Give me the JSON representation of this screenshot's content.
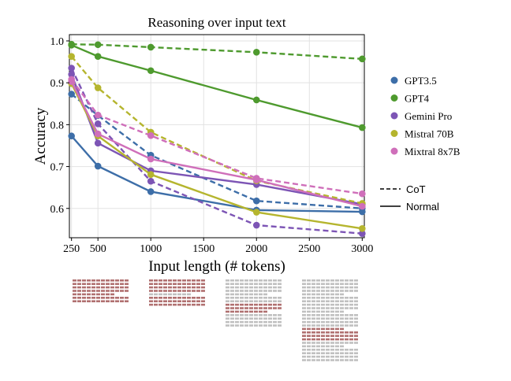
{
  "chart_data": {
    "type": "line",
    "title": "Reasoning over input text",
    "xlabel": "Input length (# tokens)",
    "ylabel": "Accuracy",
    "xlim": [
      230,
      3020
    ],
    "ylim": [
      0.53,
      1.015
    ],
    "xticks": [
      250,
      500,
      1000,
      1500,
      2000,
      2500,
      3000
    ],
    "yticks": [
      0.6,
      0.7,
      0.8,
      0.9,
      1.0
    ],
    "xtick_labels": [
      "250",
      "500",
      "1000",
      "1500",
      "2000",
      "2500",
      "3000"
    ],
    "ytick_labels": [
      "0.6",
      "0.7",
      "0.8",
      "0.9",
      "1.0"
    ],
    "grid": true,
    "legend_position": "right",
    "x": [
      250,
      500,
      1000,
      2000,
      3000
    ],
    "series": [
      {
        "name": "GPT3.5",
        "color": "#3d6ea8",
        "style": "Normal",
        "values": [
          0.773,
          0.701,
          0.64,
          0.596,
          0.592
        ]
      },
      {
        "name": "GPT3.5",
        "color": "#3d6ea8",
        "style": "CoT",
        "values": [
          0.873,
          0.822,
          0.727,
          0.618,
          0.6
        ]
      },
      {
        "name": "GPT4",
        "color": "#4e9a2e",
        "style": "Normal",
        "values": [
          0.99,
          0.963,
          0.929,
          0.859,
          0.793
        ]
      },
      {
        "name": "GPT4",
        "color": "#4e9a2e",
        "style": "CoT",
        "values": [
          0.992,
          0.991,
          0.985,
          0.973,
          0.957
        ]
      },
      {
        "name": "Gemini Pro",
        "color": "#7d55b5",
        "style": "Normal",
        "values": [
          0.92,
          0.756,
          0.69,
          0.657,
          0.61
        ]
      },
      {
        "name": "Gemini Pro",
        "color": "#7d55b5",
        "style": "CoT",
        "values": [
          0.935,
          0.802,
          0.665,
          0.56,
          0.54
        ]
      },
      {
        "name": "Mistral 70B",
        "color": "#b5b52e",
        "style": "Normal",
        "values": [
          0.898,
          0.773,
          0.681,
          0.591,
          0.552
        ]
      },
      {
        "name": "Mistral 70B",
        "color": "#b5b52e",
        "style": "CoT",
        "values": [
          0.963,
          0.888,
          0.782,
          0.666,
          0.612
        ]
      },
      {
        "name": "Mixtral 8x7B",
        "color": "#cf6fba",
        "style": "Normal",
        "values": [
          0.903,
          0.778,
          0.718,
          0.668,
          0.605
        ]
      },
      {
        "name": "Mixtral 8x7B",
        "color": "#cf6fba",
        "style": "CoT",
        "values": [
          0.908,
          0.823,
          0.774,
          0.672,
          0.635
        ]
      }
    ],
    "legend": {
      "models": [
        {
          "name": "GPT3.5",
          "color": "#3d6ea8"
        },
        {
          "name": "GPT4",
          "color": "#4e9a2e"
        },
        {
          "name": "Gemini Pro",
          "color": "#7d55b5"
        },
        {
          "name": "Mistral 70B",
          "color": "#b5b52e"
        },
        {
          "name": "Mixtral 8x7B",
          "color": "#cf6fba"
        }
      ],
      "styles": [
        {
          "name": "CoT",
          "dash": true
        },
        {
          "name": "Normal",
          "dash": false
        }
      ]
    }
  },
  "illustration": {
    "highlight_color": "#b07070",
    "filler_color": "#c0c0c0"
  }
}
